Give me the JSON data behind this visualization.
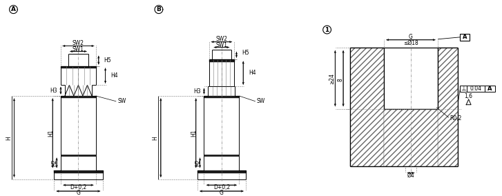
{
  "bg_color": "#ffffff",
  "line_color": "#000000",
  "label_A": "A",
  "label_B": "B",
  "label_1": "1",
  "dim_SW2": "SW2",
  "dim_SW1": "SW1",
  "dim_H5": "H5",
  "dim_H4": "H4",
  "dim_H3": "H3",
  "dim_SW": "SW",
  "dim_H": "H",
  "dim_H1": "H1",
  "dim_H2": "H2",
  "dim_D": "D+0,2",
  "dim_G": "G",
  "dim_G_top": "G",
  "dim_le18": "≤Ø18",
  "dim_ge24": "≥24",
  "dim_8": "8",
  "dim_16": "1,6",
  "dim_R02": "R0,2",
  "dim_o4": "Ø4",
  "dim_perp_val": "0.04"
}
